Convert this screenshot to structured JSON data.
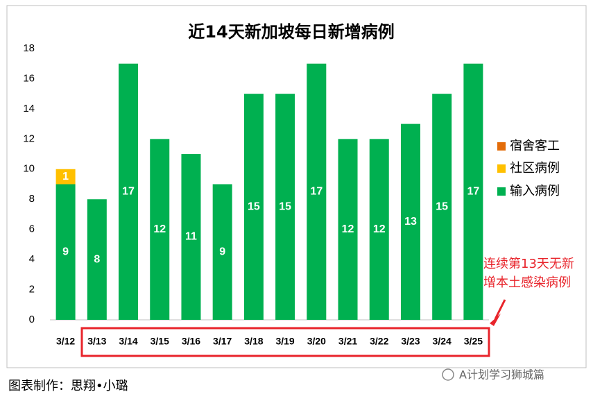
{
  "chart_data": {
    "type": "stacked-bar",
    "title": "近14天新加坡每日新增病例",
    "categories": [
      "3/12",
      "3/13",
      "3/14",
      "3/15",
      "3/16",
      "3/17",
      "3/18",
      "3/19",
      "3/20",
      "3/21",
      "3/22",
      "3/23",
      "3/24",
      "3/25"
    ],
    "series": [
      {
        "name": "输入病例",
        "color": "#00b050",
        "values": [
          9,
          8,
          17,
          12,
          11,
          9,
          15,
          15,
          17,
          12,
          12,
          13,
          15,
          17
        ]
      },
      {
        "name": "社区病例",
        "color": "#ffc000",
        "values": [
          1,
          null,
          null,
          null,
          null,
          null,
          null,
          null,
          null,
          null,
          null,
          null,
          null,
          null
        ]
      },
      {
        "name": "宿舍客工",
        "color": "#e36c09",
        "values": [
          null,
          null,
          null,
          null,
          null,
          null,
          null,
          null,
          null,
          null,
          null,
          null,
          null,
          null
        ]
      }
    ],
    "ylim": [
      0,
      18
    ],
    "yticks": [
      0,
      2,
      4,
      6,
      8,
      10,
      12,
      14,
      16,
      18
    ],
    "grid": false,
    "legend": "right",
    "annotation": [
      "连续第13天无新",
      "增本土感染病例"
    ]
  },
  "footer": {
    "credit": "图表制作：思翔•小璐",
    "watermark": "A计划学习狮城篇"
  }
}
